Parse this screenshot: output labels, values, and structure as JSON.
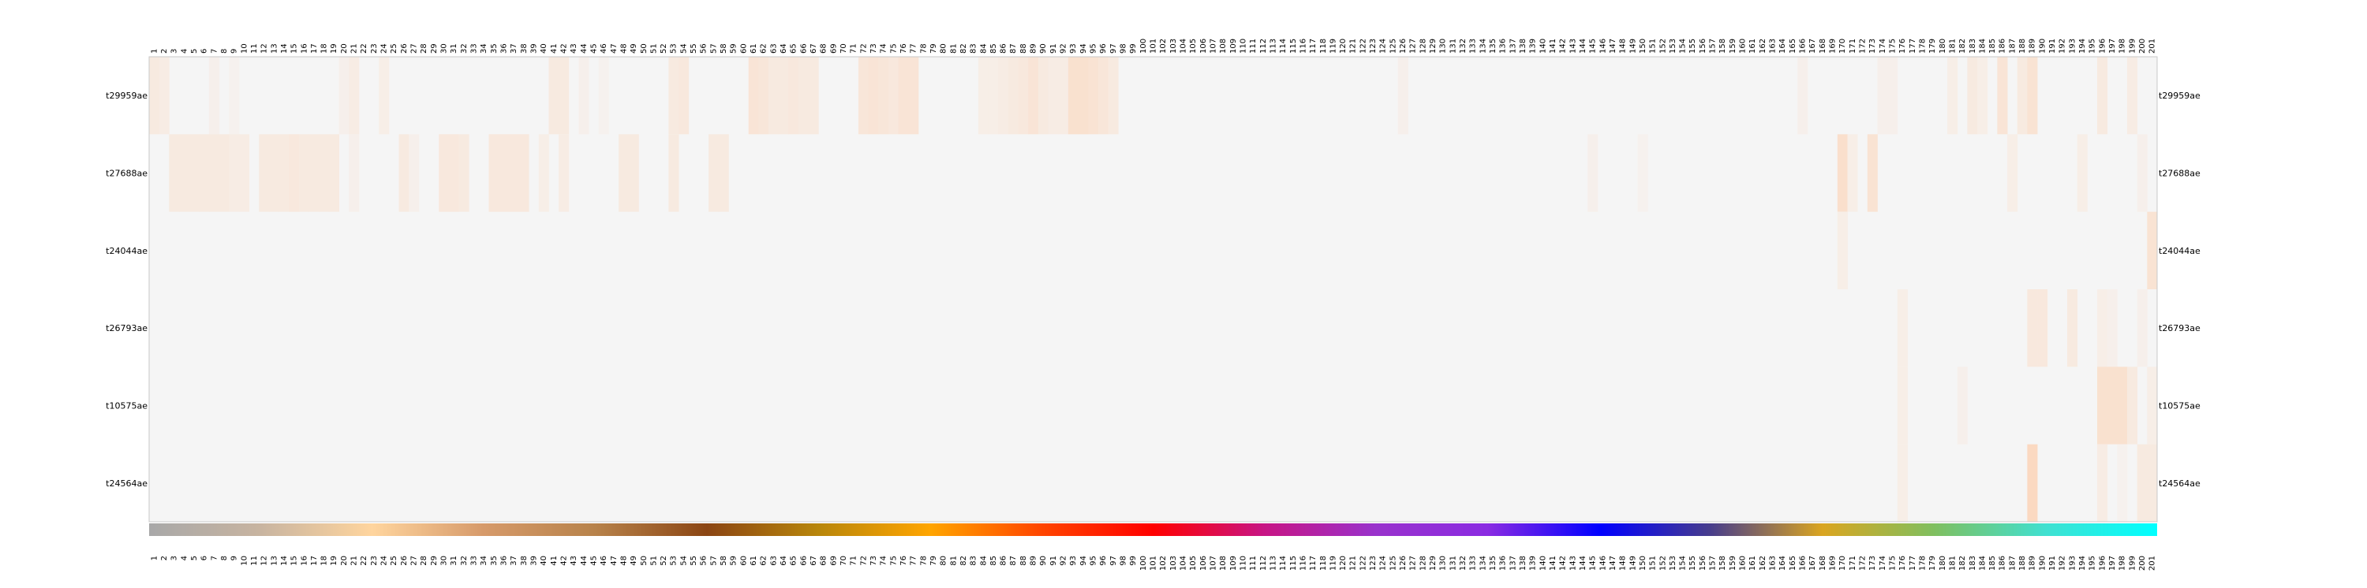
{
  "chart_data": {
    "type": "heatmap",
    "columns_count": 201,
    "rows": [
      "t29959ae",
      "t27688ae",
      "t24044ae",
      "t26793ae",
      "t10575ae",
      "t24564ae"
    ],
    "background_color": "#f5f5f5",
    "high_color": "#fdd0b0",
    "value_range": [
      0,
      1
    ],
    "cells": {
      "t29959ae": {
        "1": 0.3,
        "2": 0.25,
        "7": 0.15,
        "9": 0.1,
        "20": 0.15,
        "21": 0.25,
        "24": 0.2,
        "41": 0.3,
        "42": 0.3,
        "44": 0.15,
        "46": 0.1,
        "53": 0.3,
        "54": 0.35,
        "61": 0.45,
        "62": 0.4,
        "63": 0.3,
        "64": 0.3,
        "65": 0.35,
        "66": 0.3,
        "67": 0.3,
        "72": 0.4,
        "73": 0.45,
        "74": 0.4,
        "75": 0.35,
        "76": 0.45,
        "77": 0.45,
        "84": 0.2,
        "85": 0.2,
        "86": 0.25,
        "87": 0.3,
        "88": 0.35,
        "89": 0.45,
        "90": 0.3,
        "91": 0.25,
        "92": 0.25,
        "93": 0.55,
        "94": 0.55,
        "95": 0.5,
        "96": 0.4,
        "97": 0.3,
        "126": 0.15,
        "166": 0.15,
        "174": 0.15,
        "175": 0.15,
        "181": 0.2,
        "183": 0.3,
        "184": 0.2,
        "186": 0.45,
        "188": 0.3,
        "189": 0.5,
        "196": 0.3,
        "199": 0.25
      },
      "t27688ae": {
        "3": 0.3,
        "4": 0.3,
        "5": 0.3,
        "6": 0.3,
        "7": 0.3,
        "8": 0.3,
        "9": 0.25,
        "10": 0.25,
        "12": 0.3,
        "13": 0.3,
        "14": 0.3,
        "15": 0.35,
        "16": 0.3,
        "17": 0.3,
        "18": 0.3,
        "19": 0.3,
        "21": 0.15,
        "26": 0.3,
        "27": 0.15,
        "30": 0.35,
        "31": 0.35,
        "32": 0.3,
        "35": 0.35,
        "36": 0.35,
        "37": 0.35,
        "38": 0.35,
        "40": 0.2,
        "42": 0.25,
        "48": 0.3,
        "49": 0.3,
        "53": 0.3,
        "57": 0.3,
        "58": 0.3,
        "145": 0.15,
        "150": 0.1,
        "170": 0.6,
        "171": 0.2,
        "173": 0.5,
        "187": 0.2,
        "194": 0.2,
        "200": 0.15
      },
      "t24044ae": {
        "170": 0.2,
        "201": 0.5
      },
      "t26793ae": {
        "176": 0.2,
        "189": 0.35,
        "190": 0.35,
        "193": 0.3,
        "196": 0.2,
        "197": 0.15,
        "200": 0.15
      },
      "t10575ae": {
        "176": 0.2,
        "182": 0.15,
        "196": 0.55,
        "197": 0.55,
        "198": 0.55,
        "199": 0.3,
        "201": 0.2
      },
      "t24564ae": {
        "176": 0.2,
        "189": 0.75,
        "196": 0.25,
        "198": 0.1,
        "200": 0.3,
        "201": 0.3
      }
    },
    "colorbar_stops": [
      "#a8a8a8",
      "#c8b4a0",
      "#ffd59e",
      "#d69a6a",
      "#b7824a",
      "#8b4513",
      "#b8860b",
      "#ffa500",
      "#ff4500",
      "#ff0000",
      "#c71585",
      "#9932cc",
      "#8a2be2",
      "#0000ff",
      "#483d8b",
      "#daa520",
      "#7fbf5f",
      "#40e0d0",
      "#00ffff"
    ]
  }
}
